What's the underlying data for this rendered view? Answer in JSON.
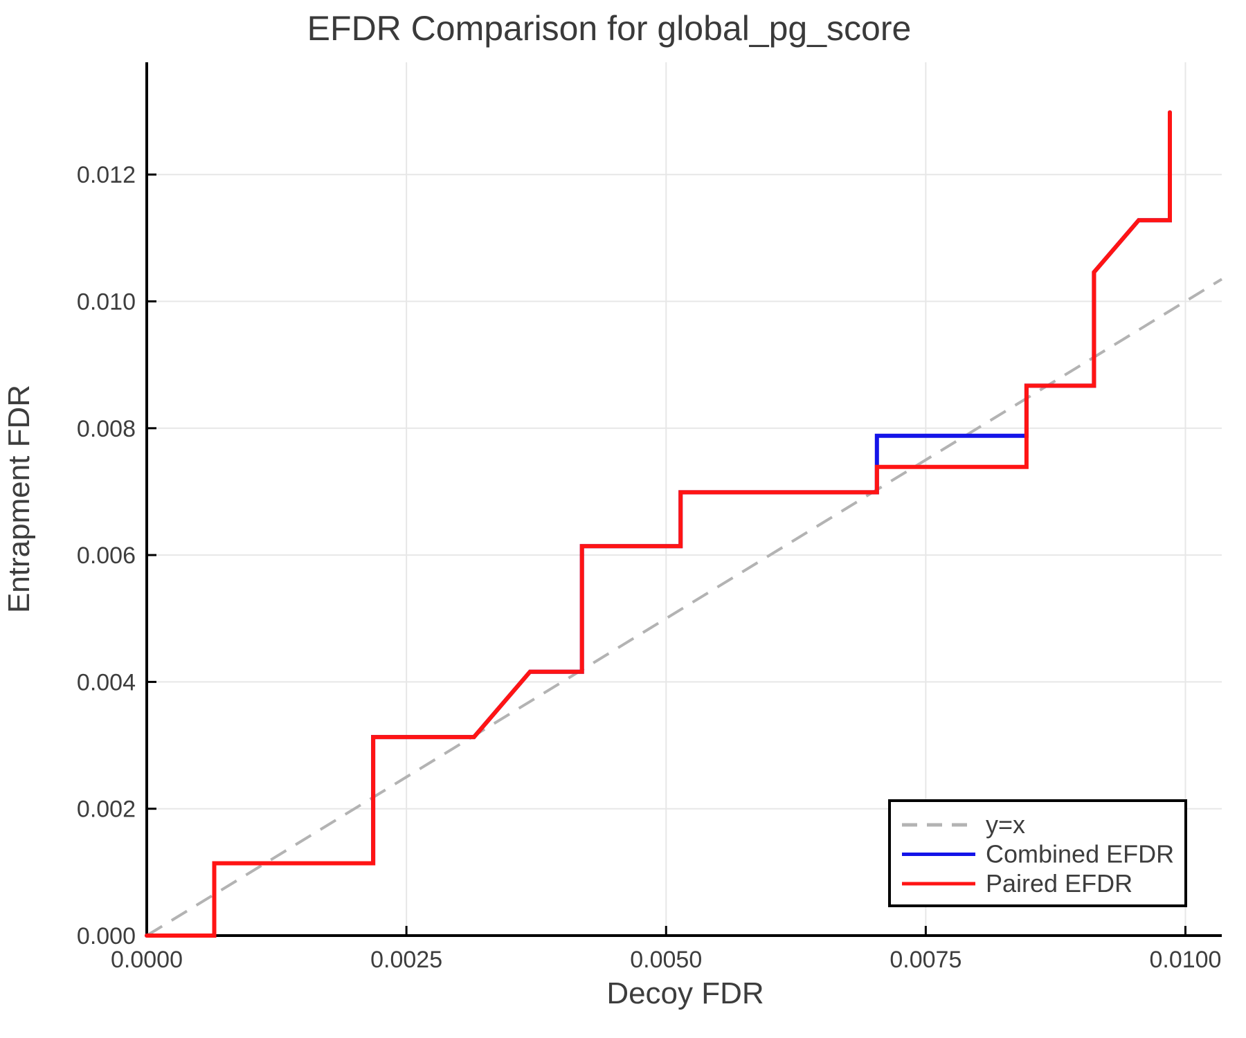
{
  "chart_data": {
    "type": "line",
    "title": "EFDR Comparison for global_pg_score",
    "xlabel": "Decoy FDR",
    "ylabel": "Entrapment FDR",
    "xlim": [
      0,
      0.01035
    ],
    "ylim": [
      0,
      0.01377
    ],
    "grid": true,
    "x_ticks": [
      0.0,
      0.0025,
      0.005,
      0.0075,
      0.01
    ],
    "x_tick_labels": [
      "0.0000",
      "0.0025",
      "0.0050",
      "0.0075",
      "0.0100"
    ],
    "y_ticks": [
      0.0,
      0.002,
      0.004,
      0.006,
      0.008,
      0.01,
      0.012
    ],
    "y_tick_labels": [
      "0.000",
      "0.002",
      "0.004",
      "0.006",
      "0.008",
      "0.010",
      "0.012"
    ],
    "colors": {
      "grid": "#e7e7e7",
      "axis": "#000000",
      "text": "#3d3d3d",
      "identity": "#b3b3b3",
      "combined": "#1414e8",
      "paired": "#ff1414"
    },
    "legend": {
      "position": "lower right",
      "entries": [
        {
          "label": "y=x",
          "color": "#b3b3b3",
          "dash": true
        },
        {
          "label": "Combined EFDR",
          "color": "#1414e8",
          "dash": false
        },
        {
          "label": "Paired EFDR",
          "color": "#ff1414",
          "dash": false
        }
      ]
    },
    "series": [
      {
        "name": "y=x",
        "color": "#b3b3b3",
        "dash": true,
        "width": 4,
        "points": [
          [
            0,
            0
          ],
          [
            0.01035,
            0.01035
          ]
        ]
      },
      {
        "name": "Combined EFDR",
        "color": "#1414e8",
        "dash": false,
        "width": 6,
        "points": [
          [
            0.0,
            0.0
          ],
          [
            0.00065,
            0.0
          ],
          [
            0.00065,
            0.00114
          ],
          [
            0.00218,
            0.00114
          ],
          [
            0.00218,
            0.00313
          ],
          [
            0.00315,
            0.00313
          ],
          [
            0.00369,
            0.00416
          ],
          [
            0.00419,
            0.00416
          ],
          [
            0.00419,
            0.00614
          ],
          [
            0.00514,
            0.00614
          ],
          [
            0.00514,
            0.00699
          ],
          [
            0.00703,
            0.00699
          ],
          [
            0.00703,
            0.00788
          ],
          [
            0.00847,
            0.00788
          ],
          [
            0.00847,
            0.00867
          ],
          [
            0.00912,
            0.00867
          ],
          [
            0.00912,
            0.01046
          ],
          [
            0.00955,
            0.01128
          ],
          [
            0.00985,
            0.01128
          ],
          [
            0.00985,
            0.01298
          ]
        ]
      },
      {
        "name": "Paired EFDR",
        "color": "#ff1414",
        "dash": false,
        "width": 6,
        "points": [
          [
            0.0,
            0.0
          ],
          [
            0.00065,
            0.0
          ],
          [
            0.00065,
            0.00114
          ],
          [
            0.00218,
            0.00114
          ],
          [
            0.00218,
            0.00313
          ],
          [
            0.00315,
            0.00313
          ],
          [
            0.00369,
            0.00416
          ],
          [
            0.00419,
            0.00416
          ],
          [
            0.00419,
            0.00614
          ],
          [
            0.00514,
            0.00614
          ],
          [
            0.00514,
            0.00699
          ],
          [
            0.00703,
            0.00699
          ],
          [
            0.00703,
            0.00739
          ],
          [
            0.00847,
            0.00739
          ],
          [
            0.00847,
            0.00867
          ],
          [
            0.00912,
            0.00867
          ],
          [
            0.00912,
            0.01046
          ],
          [
            0.00955,
            0.01128
          ],
          [
            0.00985,
            0.01128
          ],
          [
            0.00985,
            0.01298
          ]
        ]
      }
    ]
  }
}
